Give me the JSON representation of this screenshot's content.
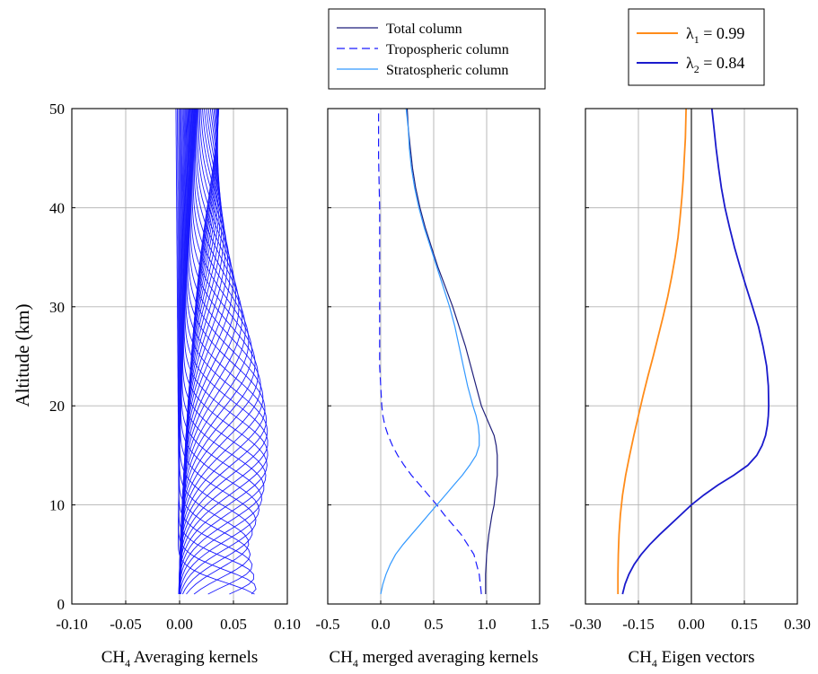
{
  "y_axis_label": "Altitude (km)",
  "chart_data": [
    {
      "type": "line",
      "name_text": "CH",
      "name_sub": "4",
      "name_rest": " Averaging kernels",
      "xlim": [
        -0.1,
        0.1
      ],
      "ylim": [
        0,
        50
      ],
      "xticks": [
        "-0.10",
        "-0.05",
        "0.00",
        "0.05",
        "0.10"
      ],
      "xtick_values": [
        -0.1,
        -0.05,
        0.0,
        0.05,
        0.1
      ],
      "yticks": [
        "0",
        "10",
        "20",
        "30",
        "40",
        "50"
      ],
      "ytick_values": [
        0,
        10,
        20,
        30,
        40,
        50
      ],
      "grid": true,
      "color": "#1a1aff",
      "kernel_count": 45,
      "kernel_x_at_50km": [
        -0.002,
        0.015
      ],
      "kernel_x_at_top_edge_30km": 0.06,
      "kernel_x_at_top_edge_15km": 0.075,
      "kernel_x_at_base": [
        -0.005,
        0.08
      ]
    },
    {
      "type": "line",
      "name_text": "CH",
      "name_sub": "4",
      "name_rest": " merged averaging kernels",
      "xlim": [
        -0.5,
        1.5
      ],
      "ylim": [
        0,
        50
      ],
      "xticks": [
        "-0.5",
        "0.0",
        "0.5",
        "1.0",
        "1.5"
      ],
      "xtick_values": [
        -0.5,
        0.0,
        0.5,
        1.0,
        1.5
      ],
      "yticks": [
        "0",
        "10",
        "20",
        "30",
        "40",
        "50"
      ],
      "ytick_values": [
        0,
        10,
        20,
        30,
        40,
        50
      ],
      "grid": true,
      "legend": "top",
      "series": [
        {
          "name": "Total column",
          "color": "#1f1f7a",
          "dash": "solid",
          "y": [
            1,
            3,
            5,
            7,
            9,
            10,
            11,
            12,
            13,
            14,
            15,
            16,
            17,
            18,
            19,
            20,
            22,
            24,
            26,
            28,
            30,
            32,
            34,
            36,
            38,
            40,
            42,
            44,
            46,
            48,
            50
          ],
          "x": [
            0.99,
            0.99,
            1.0,
            1.02,
            1.05,
            1.07,
            1.08,
            1.09,
            1.1,
            1.1,
            1.1,
            1.09,
            1.07,
            1.03,
            0.99,
            0.95,
            0.9,
            0.85,
            0.8,
            0.74,
            0.68,
            0.61,
            0.54,
            0.48,
            0.42,
            0.37,
            0.33,
            0.3,
            0.28,
            0.26,
            0.25
          ]
        },
        {
          "name": "Tropospheric column",
          "color": "#1a1aff",
          "dash": "dashed",
          "y": [
            1,
            3,
            5,
            7,
            9,
            10,
            11,
            12,
            13,
            14,
            15,
            16,
            17,
            18,
            19,
            20,
            22,
            24,
            26,
            28,
            30,
            35,
            40,
            45,
            50
          ],
          "x": [
            0.95,
            0.93,
            0.88,
            0.76,
            0.6,
            0.53,
            0.45,
            0.37,
            0.29,
            0.22,
            0.16,
            0.11,
            0.07,
            0.04,
            0.02,
            0.01,
            0.0,
            -0.01,
            -0.01,
            -0.01,
            -0.01,
            -0.01,
            -0.01,
            -0.02,
            -0.02
          ]
        },
        {
          "name": "Stratospheric column",
          "color": "#3399ff",
          "dash": "solid",
          "y": [
            1,
            2,
            3,
            4,
            5,
            6,
            7,
            8,
            9,
            10,
            11,
            12,
            13,
            14,
            15,
            16,
            17,
            18,
            19,
            20,
            22,
            24,
            26,
            28,
            30,
            32,
            34,
            36,
            38,
            40,
            42,
            44,
            46,
            48,
            50
          ],
          "x": [
            0.0,
            0.02,
            0.05,
            0.09,
            0.14,
            0.21,
            0.29,
            0.37,
            0.45,
            0.53,
            0.61,
            0.69,
            0.77,
            0.84,
            0.9,
            0.93,
            0.93,
            0.92,
            0.9,
            0.87,
            0.82,
            0.78,
            0.74,
            0.7,
            0.65,
            0.59,
            0.53,
            0.47,
            0.41,
            0.36,
            0.32,
            0.29,
            0.27,
            0.26,
            0.24
          ]
        }
      ]
    },
    {
      "type": "line",
      "name_text": "CH",
      "name_sub": "4",
      "name_rest": " Eigen vectors",
      "xlim": [
        -0.3,
        0.3
      ],
      "ylim": [
        0,
        50
      ],
      "xticks": [
        "-0.30",
        "-0.15",
        "0.00",
        "0.15",
        "0.30"
      ],
      "xtick_values": [
        -0.3,
        -0.15,
        0.0,
        0.15,
        0.3
      ],
      "yticks": [
        "0",
        "10",
        "20",
        "30",
        "40",
        "50"
      ],
      "ytick_values": [
        0,
        10,
        20,
        30,
        40,
        50
      ],
      "grid": true,
      "zero_line": true,
      "legend": "top-right",
      "series": [
        {
          "name_greek": "λ",
          "name_sub": "1",
          "name_rest": " = 0.99",
          "color": "#ff8c1a",
          "y": [
            1,
            3,
            5,
            7,
            9,
            11,
            13,
            15,
            17,
            19,
            21,
            23,
            25,
            27,
            29,
            31,
            33,
            35,
            37,
            39,
            41,
            43,
            45,
            47,
            50
          ],
          "x": [
            -0.208,
            -0.208,
            -0.207,
            -0.205,
            -0.201,
            -0.195,
            -0.186,
            -0.175,
            -0.163,
            -0.15,
            -0.137,
            -0.123,
            -0.108,
            -0.094,
            -0.08,
            -0.067,
            -0.056,
            -0.046,
            -0.038,
            -0.032,
            -0.027,
            -0.023,
            -0.02,
            -0.017,
            -0.015
          ]
        },
        {
          "name_greek": "λ",
          "name_sub": "2",
          "name_rest": " = 0.84",
          "color": "#1a1acc",
          "y": [
            1,
            2,
            3,
            4,
            5,
            6,
            7,
            8,
            9,
            10,
            11,
            12,
            13,
            14,
            15,
            16,
            17,
            18,
            19,
            20,
            22,
            24,
            26,
            28,
            30,
            32,
            34,
            36,
            38,
            40,
            42,
            44,
            46,
            48,
            50
          ],
          "x": [
            -0.195,
            -0.188,
            -0.177,
            -0.162,
            -0.142,
            -0.118,
            -0.09,
            -0.06,
            -0.03,
            0.0,
            0.035,
            0.075,
            0.12,
            0.16,
            0.185,
            0.2,
            0.21,
            0.215,
            0.218,
            0.219,
            0.218,
            0.213,
            0.203,
            0.19,
            0.173,
            0.155,
            0.138,
            0.122,
            0.108,
            0.095,
            0.085,
            0.077,
            0.07,
            0.064,
            0.058
          ]
        }
      ]
    }
  ]
}
